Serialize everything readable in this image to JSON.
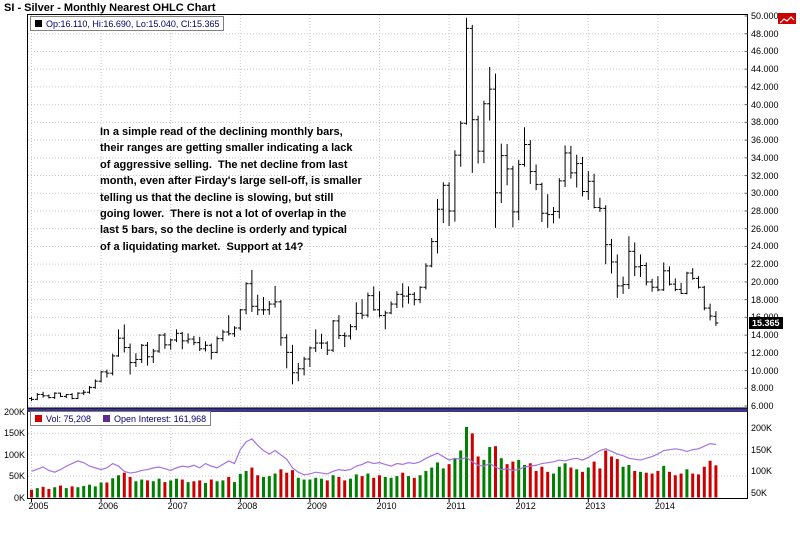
{
  "header": {
    "title": "SI - Silver - Monthly Nearest OHLC Chart"
  },
  "legend": {
    "ohlc_text": "Op:16.110, Hi:16.690, Lo:15.040, Cl:15.365",
    "vol_text": "Vol: 75,208",
    "oi_text": "Open Interest: 161,968"
  },
  "annotation_lines": [
    "In a simple read of the declining monthly bars,",
    "their ranges are getting smaller indicating a lack",
    "of aggressive selling.  The net decline from last",
    "month, even after Firday's large sell-off, is smaller",
    "telling us that the decline is slowing, but still",
    "going lower.  There is not a lot of overlap in the",
    "last 5 bars, so the decline is orderly and typical",
    "of a liquidating market.  Support at 14?"
  ],
  "colors": {
    "bar": "#000000",
    "vol_up": "#008000",
    "vol_down": "#cc0000",
    "oi_line": "#a473e0",
    "oi_swatch": "#5b2d8e",
    "band": "#3c3590",
    "grid": "#c9c9c9",
    "legend_text": "#00006a",
    "last_price_bg": "#000000"
  },
  "chart_data": {
    "type": "ohlc",
    "title": "SI - Silver - Monthly Nearest OHLC Chart",
    "x_start": "2005-01",
    "x_interval": "month",
    "ylim": [
      6,
      50
    ],
    "y_tick_step": 2,
    "y_tick_labels": [
      "50.000",
      "48.000",
      "46.000",
      "44.000",
      "42.000",
      "40.000",
      "38.000",
      "36.000",
      "34.000",
      "32.000",
      "30.000",
      "28.000",
      "26.000",
      "24.000",
      "22.000",
      "20.000",
      "18.000",
      "16.000",
      "14.000",
      "12.000",
      "10.000",
      "8.000",
      "6.000"
    ],
    "vol_ylim_k": [
      0,
      200
    ],
    "oi_axis_k": [
      50,
      200
    ],
    "vol_left_labels": [
      "200K",
      "150K",
      "100K",
      "50K",
      "0K"
    ],
    "vol_right_labels": [
      "200K",
      "150K",
      "100K",
      "50K"
    ],
    "year_labels": [
      "2005",
      "2006",
      "2007",
      "2008",
      "2009",
      "2010",
      "2011",
      "2012",
      "2013",
      "2014"
    ],
    "last_close_label": "15.365",
    "last_close_value": 15.365,
    "last": {
      "op": "16.110",
      "hi": "16.690",
      "lo": "15.040",
      "cl": "15.365"
    },
    "ohlc": [
      [
        6.85,
        7.0,
        6.55,
        6.75
      ],
      [
        6.75,
        7.45,
        6.65,
        7.3
      ],
      [
        7.3,
        7.6,
        6.95,
        7.15
      ],
      [
        7.15,
        7.3,
        6.85,
        6.95
      ],
      [
        6.95,
        7.55,
        6.8,
        7.45
      ],
      [
        7.45,
        7.5,
        7.0,
        7.08
      ],
      [
        7.08,
        7.35,
        6.9,
        7.3
      ],
      [
        7.3,
        7.45,
        6.75,
        6.85
      ],
      [
        6.85,
        7.55,
        6.8,
        7.45
      ],
      [
        7.45,
        7.8,
        7.25,
        7.55
      ],
      [
        7.55,
        8.25,
        7.4,
        8.1
      ],
      [
        8.1,
        9.0,
        7.95,
        8.8
      ],
      [
        8.8,
        9.95,
        8.65,
        9.85
      ],
      [
        9.85,
        10.1,
        9.2,
        9.7
      ],
      [
        9.7,
        11.9,
        9.45,
        11.65
      ],
      [
        11.65,
        14.65,
        11.55,
        13.65
      ],
      [
        13.65,
        15.2,
        12.05,
        12.6
      ],
      [
        12.6,
        13.05,
        9.55,
        10.9
      ],
      [
        10.9,
        11.95,
        10.4,
        11.25
      ],
      [
        11.25,
        13.0,
        10.85,
        12.85
      ],
      [
        12.85,
        13.2,
        10.55,
        11.55
      ],
      [
        11.55,
        12.45,
        10.85,
        12.2
      ],
      [
        12.2,
        14.1,
        12.0,
        14.0
      ],
      [
        14.0,
        14.25,
        12.45,
        12.9
      ],
      [
        12.9,
        13.6,
        12.35,
        13.45
      ],
      [
        13.45,
        14.65,
        13.2,
        14.2
      ],
      [
        14.2,
        14.35,
        12.4,
        13.35
      ],
      [
        13.35,
        14.2,
        13.05,
        13.55
      ],
      [
        13.55,
        13.9,
        12.85,
        13.15
      ],
      [
        13.15,
        13.8,
        12.2,
        12.45
      ],
      [
        12.45,
        13.3,
        12.15,
        12.85
      ],
      [
        12.85,
        13.05,
        11.25,
        12.05
      ],
      [
        12.05,
        13.85,
        11.95,
        13.6
      ],
      [
        13.6,
        14.6,
        13.3,
        14.35
      ],
      [
        14.35,
        16.25,
        13.95,
        14.15
      ],
      [
        14.15,
        15.0,
        13.8,
        14.8
      ],
      [
        14.8,
        16.95,
        14.55,
        16.85
      ],
      [
        16.85,
        19.95,
        16.35,
        19.8
      ],
      [
        19.8,
        21.35,
        16.6,
        17.25
      ],
      [
        17.25,
        18.55,
        16.25,
        16.85
      ],
      [
        16.85,
        18.3,
        16.3,
        16.85
      ],
      [
        16.85,
        17.85,
        16.3,
        17.5
      ],
      [
        17.5,
        19.55,
        17.1,
        17.75
      ],
      [
        17.75,
        17.95,
        12.8,
        13.7
      ],
      [
        13.7,
        14.1,
        10.25,
        12.05
      ],
      [
        12.05,
        12.9,
        8.45,
        9.75
      ],
      [
        9.75,
        10.85,
        8.8,
        10.2
      ],
      [
        10.2,
        11.55,
        9.45,
        11.3
      ],
      [
        11.3,
        12.7,
        10.4,
        12.55
      ],
      [
        12.55,
        14.65,
        12.1,
        13.1
      ],
      [
        13.1,
        14.15,
        12.45,
        13.1
      ],
      [
        13.1,
        13.3,
        11.75,
        12.3
      ],
      [
        12.3,
        15.7,
        12.1,
        15.6
      ],
      [
        15.6,
        16.25,
        13.55,
        13.95
      ],
      [
        13.95,
        14.3,
        12.65,
        13.9
      ],
      [
        13.9,
        15.25,
        13.5,
        14.95
      ],
      [
        14.95,
        17.7,
        14.55,
        16.45
      ],
      [
        16.45,
        18.05,
        15.8,
        16.25
      ],
      [
        16.25,
        18.8,
        16.0,
        18.45
      ],
      [
        18.45,
        19.5,
        16.75,
        16.85
      ],
      [
        16.85,
        18.95,
        16.0,
        16.2
      ],
      [
        16.2,
        16.75,
        14.65,
        16.5
      ],
      [
        16.5,
        17.8,
        16.35,
        17.5
      ],
      [
        17.5,
        18.95,
        17.05,
        18.6
      ],
      [
        18.6,
        19.85,
        17.1,
        18.4
      ],
      [
        18.4,
        19.5,
        17.55,
        18.6
      ],
      [
        18.6,
        18.85,
        17.35,
        18.0
      ],
      [
        18.0,
        19.5,
        17.6,
        19.4
      ],
      [
        19.4,
        22.1,
        19.15,
        21.8
      ],
      [
        21.8,
        24.95,
        21.65,
        24.55
      ],
      [
        24.55,
        29.35,
        23.2,
        28.2
      ],
      [
        28.2,
        31.25,
        26.65,
        30.9
      ],
      [
        30.9,
        31.25,
        26.3,
        28.0
      ],
      [
        28.0,
        34.85,
        26.8,
        34.3
      ],
      [
        34.3,
        38.15,
        33.0,
        37.9
      ],
      [
        37.9,
        49.8,
        37.75,
        48.6
      ],
      [
        48.6,
        49.0,
        32.3,
        38.3
      ],
      [
        38.3,
        38.75,
        33.35,
        34.75
      ],
      [
        34.75,
        40.45,
        33.4,
        40.1
      ],
      [
        40.1,
        44.25,
        38.2,
        41.75
      ],
      [
        41.75,
        43.5,
        26.1,
        30.05
      ],
      [
        30.05,
        35.6,
        28.9,
        34.25
      ],
      [
        34.25,
        35.55,
        30.9,
        32.75
      ],
      [
        32.75,
        33.1,
        26.15,
        27.9
      ],
      [
        27.9,
        33.75,
        26.95,
        33.25
      ],
      [
        33.25,
        37.45,
        33.0,
        35.5
      ],
      [
        35.5,
        36.0,
        31.05,
        32.45
      ],
      [
        32.45,
        33.25,
        30.35,
        31.0
      ],
      [
        31.0,
        31.2,
        26.75,
        27.75
      ],
      [
        27.75,
        29.9,
        26.1,
        27.6
      ],
      [
        27.6,
        28.45,
        26.6,
        27.95
      ],
      [
        27.95,
        31.7,
        27.15,
        31.4
      ],
      [
        31.4,
        35.4,
        30.7,
        34.55
      ],
      [
        34.55,
        35.35,
        31.65,
        32.3
      ],
      [
        32.3,
        34.35,
        30.65,
        33.35
      ],
      [
        33.35,
        34.1,
        29.65,
        30.2
      ],
      [
        30.2,
        32.5,
        29.25,
        31.35
      ],
      [
        31.35,
        32.2,
        28.3,
        28.4
      ],
      [
        28.4,
        29.5,
        27.9,
        28.3
      ],
      [
        28.3,
        28.65,
        22.0,
        24.2
      ],
      [
        24.2,
        24.85,
        20.95,
        22.25
      ],
      [
        22.25,
        23.1,
        18.2,
        19.55
      ],
      [
        19.55,
        20.6,
        18.65,
        19.7
      ],
      [
        19.7,
        25.15,
        19.2,
        23.45
      ],
      [
        23.45,
        24.45,
        20.65,
        21.7
      ],
      [
        21.7,
        23.1,
        20.55,
        21.85
      ],
      [
        21.85,
        22.2,
        19.6,
        20.0
      ],
      [
        20.0,
        20.35,
        18.9,
        19.4
      ],
      [
        19.4,
        20.65,
        18.95,
        19.1
      ],
      [
        19.1,
        22.2,
        19.0,
        21.25
      ],
      [
        21.25,
        21.75,
        19.6,
        19.75
      ],
      [
        19.75,
        20.4,
        18.95,
        19.15
      ],
      [
        19.15,
        19.9,
        18.65,
        18.7
      ],
      [
        18.7,
        21.15,
        18.6,
        21.0
      ],
      [
        21.0,
        21.55,
        20.25,
        20.4
      ],
      [
        20.4,
        20.65,
        19.25,
        19.4
      ],
      [
        19.4,
        19.55,
        16.8,
        17.05
      ],
      [
        17.05,
        17.55,
        15.65,
        16.15
      ],
      [
        16.11,
        16.69,
        15.04,
        15.365
      ]
    ],
    "volume_k": [
      18,
      22,
      25,
      20,
      24,
      28,
      22,
      26,
      24,
      27,
      30,
      26,
      35,
      35,
      45,
      52,
      58,
      48,
      38,
      42,
      40,
      38,
      44,
      36,
      40,
      44,
      42,
      36,
      38,
      40,
      34,
      42,
      38,
      40,
      48,
      36,
      55,
      62,
      70,
      52,
      48,
      50,
      56,
      66,
      58,
      64,
      46,
      42,
      42,
      46,
      44,
      40,
      52,
      48,
      40,
      44,
      54,
      50,
      56,
      46,
      52,
      48,
      46,
      50,
      58,
      50,
      46,
      52,
      62,
      70,
      82,
      68,
      78,
      92,
      110,
      165,
      150,
      96,
      88,
      118,
      120,
      92,
      78,
      84,
      88,
      76,
      80,
      62,
      72,
      60,
      56,
      72,
      80,
      70,
      66,
      60,
      70,
      84,
      68,
      110,
      96,
      90,
      72,
      76,
      62,
      60,
      58,
      56,
      62,
      74,
      60,
      52,
      56,
      66,
      56,
      54,
      72,
      86,
      75.208
    ],
    "open_interest_k": [
      100,
      105,
      110,
      102,
      98,
      104,
      112,
      118,
      124,
      120,
      112,
      108,
      104,
      108,
      118,
      112,
      100,
      96,
      98,
      102,
      104,
      108,
      110,
      106,
      102,
      108,
      112,
      110,
      114,
      108,
      118,
      112,
      108,
      116,
      124,
      118,
      150,
      168,
      175,
      160,
      148,
      140,
      148,
      138,
      128,
      108,
      98,
      92,
      94,
      98,
      96,
      94,
      100,
      104,
      102,
      104,
      112,
      116,
      122,
      118,
      120,
      116,
      112,
      118,
      116,
      120,
      118,
      122,
      130,
      136,
      142,
      134,
      126,
      130,
      128,
      132,
      122,
      114,
      112,
      118,
      110,
      104,
      106,
      102,
      104,
      110,
      112,
      114,
      118,
      120,
      122,
      126,
      124,
      128,
      130,
      126,
      132,
      140,
      148,
      152,
      146,
      140,
      136,
      130,
      128,
      126,
      130,
      134,
      140,
      148,
      150,
      152,
      150,
      146,
      150,
      152,
      158,
      164,
      161.968
    ]
  }
}
